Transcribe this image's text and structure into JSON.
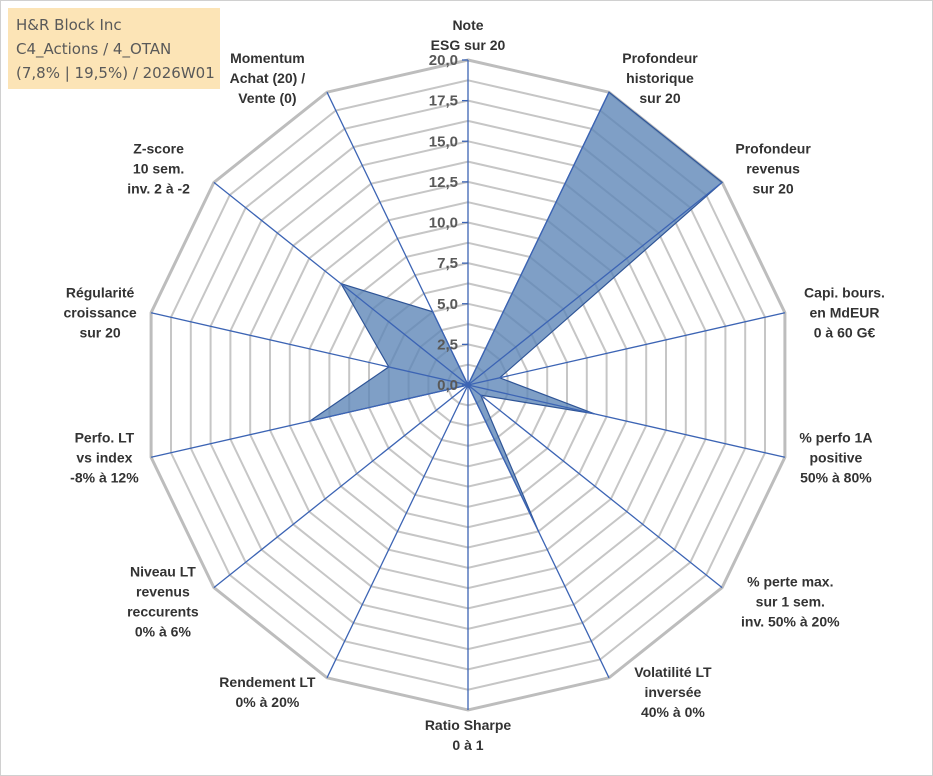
{
  "info_box": {
    "line1": "H&R Block Inc",
    "line2": "C4_Actions / 4_OTAN",
    "line3": "(7,8% | 19,5%) / 2026W01"
  },
  "colors": {
    "series_fill": "#5b84b6",
    "series_stroke": "#2f5597",
    "spoke": "#3c64b4",
    "ring": "#c6c6c6",
    "ring_outer": "#bdbdbd",
    "info_bg": "#fce4b6"
  },
  "chart_data": {
    "type": "radar",
    "title": "",
    "rmin": 0,
    "rmax": 20,
    "tick_step": 2.5,
    "tick_labels": [
      "0,0",
      "2,5",
      "5,0",
      "7,5",
      "10,0",
      "12,5",
      "15,0",
      "17,5",
      "20,0"
    ],
    "minor_rings": 16,
    "grid": true,
    "categories": [
      "Note\nESG sur 20",
      "Profondeur\nhistorique\nsur 20",
      "Profondeur\nrevenus\nsur 20",
      "Capi. bours.\nen MdEUR\n0 à 60 G€",
      "% perfo 1A\npositive\n50% à 80%",
      "% perte max.\nsur 1 sem.\ninv. 50% à 20%",
      "Volatilité LT\ninversée\n40% à 0%",
      "Ratio Sharpe\n0 à 1",
      "Rendement LT\n0% à 20%",
      "Niveau LT\nrevenus\nreccurents\n0% à 6%",
      "Perfo. LT\nvs index\n-8% à 12%",
      "Régularité\ncroissance\nsur 20",
      "Z-score\n10 sem.\ninv. 2 à -2",
      "Momentum\nAchat (20) /\nVente (0)"
    ],
    "series": [
      {
        "values": [
          0,
          20,
          20,
          2,
          8,
          1,
          10,
          0,
          0,
          0,
          10,
          5,
          10,
          5
        ]
      }
    ]
  }
}
